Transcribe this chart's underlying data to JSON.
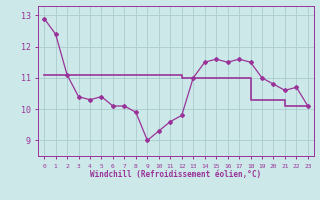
{
  "hours": [
    0,
    1,
    2,
    3,
    4,
    5,
    6,
    7,
    8,
    9,
    10,
    11,
    12,
    13,
    14,
    15,
    16,
    17,
    18,
    19,
    20,
    21,
    22,
    23
  ],
  "windchill": [
    12.9,
    12.4,
    11.1,
    10.4,
    10.3,
    10.4,
    10.1,
    10.1,
    9.9,
    9.0,
    9.3,
    9.6,
    9.8,
    11.0,
    11.5,
    11.6,
    11.5,
    11.6,
    11.5,
    11.0,
    10.8,
    10.6,
    10.7,
    10.1
  ],
  "temp": [
    11.1,
    11.1,
    11.1,
    11.1,
    11.1,
    11.1,
    11.1,
    11.1,
    11.1,
    11.1,
    11.1,
    11.1,
    11.0,
    11.0,
    11.0,
    11.0,
    11.0,
    11.0,
    10.3,
    10.3,
    10.3,
    10.1,
    10.1,
    10.1
  ],
  "line_color": "#993399",
  "bg_color": "#cce8e8",
  "grid_color": "#aacccc",
  "xlabel": "Windchill (Refroidissement éolien,°C)",
  "ylim": [
    8.5,
    13.3
  ],
  "xlim": [
    -0.5,
    23.5
  ],
  "yticks": [
    9,
    10,
    11,
    12,
    13
  ]
}
